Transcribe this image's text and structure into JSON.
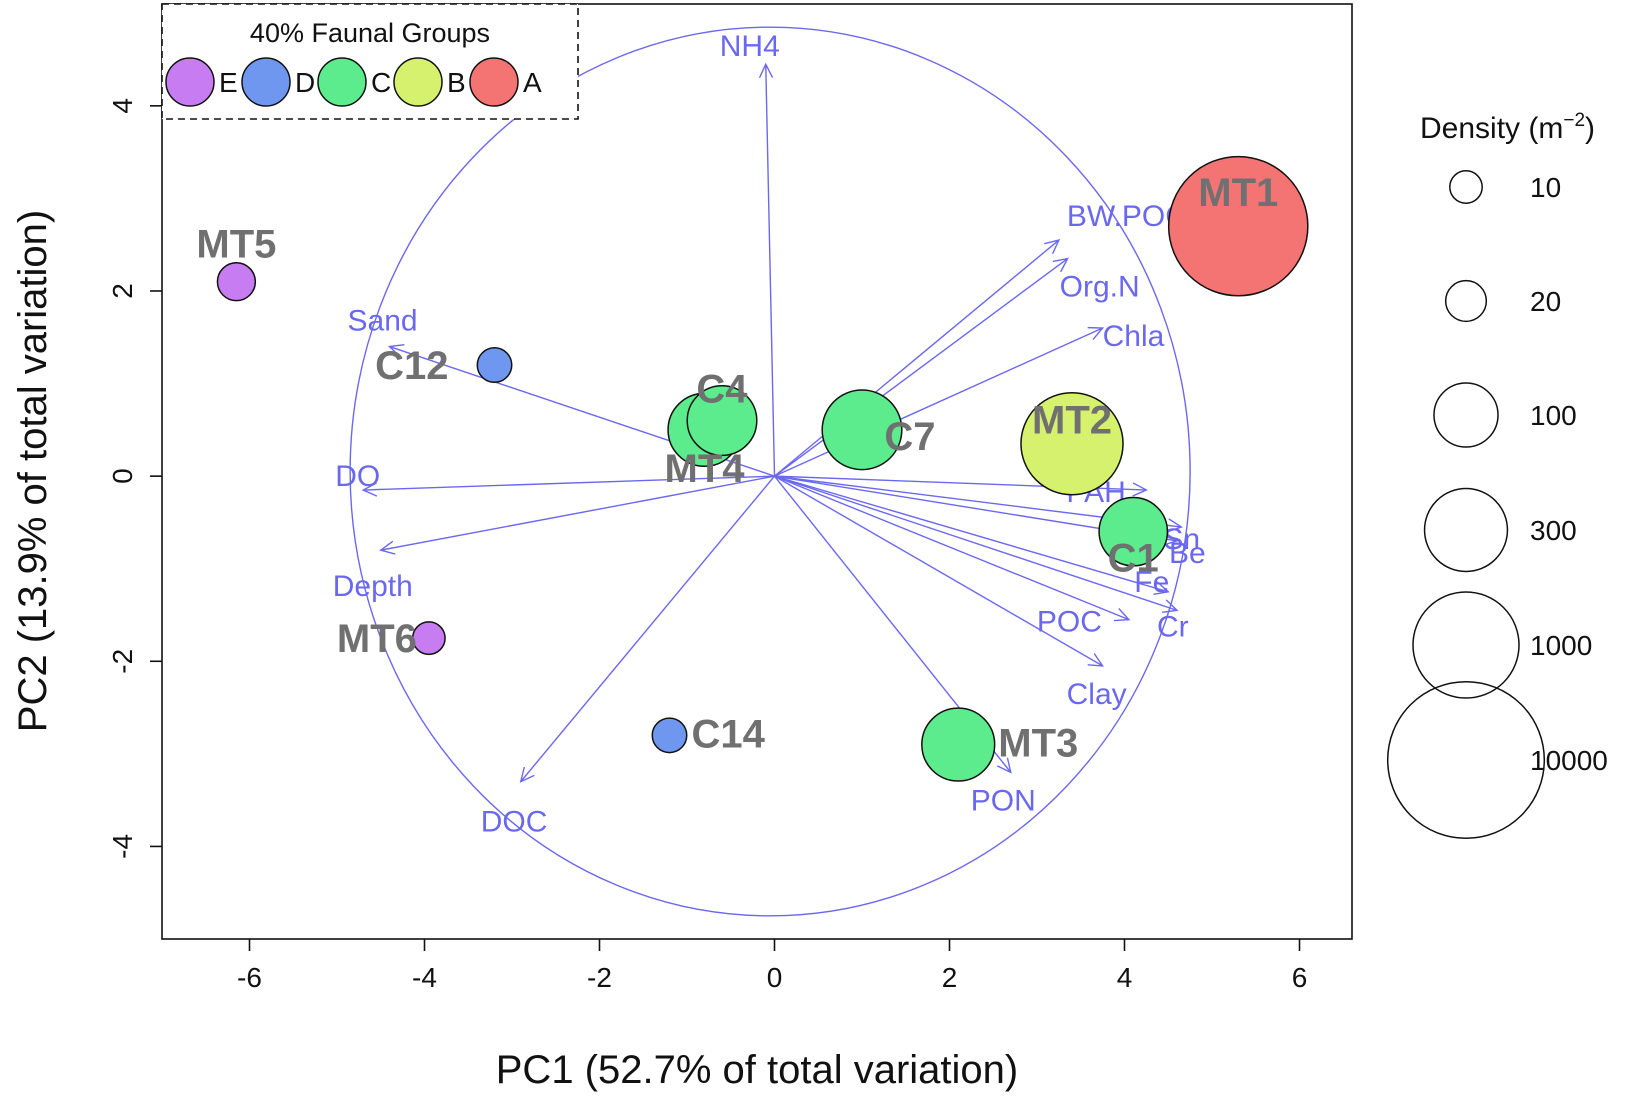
{
  "chart_data": {
    "type": "scatter",
    "title": "",
    "xlabel": "PC1 (52.7% of total variation)",
    "ylabel": "PC2 (13.9% of total variation)",
    "xlim": [
      -7,
      6.6
    ],
    "ylim": [
      -5,
      5.1
    ],
    "xticks": [
      -6,
      -4,
      -2,
      0,
      2,
      4,
      6
    ],
    "yticks": [
      -4,
      -2,
      0,
      2,
      4
    ],
    "grid": false,
    "legend_position": "top-left",
    "groups_title": "40% Faunal Groups",
    "groups": [
      {
        "label": "E",
        "color": "#c77cf2"
      },
      {
        "label": "D",
        "color": "#6f97f0"
      },
      {
        "label": "C",
        "color": "#5cec8d"
      },
      {
        "label": "B",
        "color": "#d6f16e"
      },
      {
        "label": "A",
        "color": "#f47474"
      }
    ],
    "density_title": "Density (m",
    "density_unit_exp": "−2",
    "density_unit_close": ")",
    "density_legend": [
      {
        "label": "10",
        "value": 10
      },
      {
        "label": "20",
        "value": 20
      },
      {
        "label": "100",
        "value": 100
      },
      {
        "label": "300",
        "value": 300
      },
      {
        "label": "1000",
        "value": 1000
      },
      {
        "label": "10000",
        "value": 10000
      }
    ],
    "circle_center": [
      -0.05,
      0.05
    ],
    "circle_radius": 4.8,
    "points": [
      {
        "label": "MT1",
        "x": 5.3,
        "y": 2.7,
        "group": "A",
        "density": 4700
      },
      {
        "label": "MT2",
        "x": 3.4,
        "y": 0.35,
        "group": "B",
        "density": 820
      },
      {
        "label": "C7",
        "x": 1.0,
        "y": 0.5,
        "group": "C",
        "density": 250
      },
      {
        "label": "C4",
        "x": -0.6,
        "y": 0.6,
        "group": "C",
        "density": 140
      },
      {
        "label": "MT4",
        "x": -0.8,
        "y": 0.5,
        "group": "C",
        "density": 170
      },
      {
        "label": "C1",
        "x": 4.1,
        "y": -0.6,
        "group": "C",
        "density": 130
      },
      {
        "label": "MT3",
        "x": 2.1,
        "y": -2.9,
        "group": "C",
        "density": 170
      },
      {
        "label": "C12",
        "x": -3.2,
        "y": 1.2,
        "group": "D",
        "density": 12
      },
      {
        "label": "C14",
        "x": -1.2,
        "y": -2.8,
        "group": "D",
        "density": 12
      },
      {
        "label": "MT5",
        "x": -6.15,
        "y": 2.1,
        "group": "E",
        "density": 16
      },
      {
        "label": "MT6",
        "x": -3.95,
        "y": -1.75,
        "group": "E",
        "density": 10
      }
    ],
    "vectors": [
      {
        "label": "NH4",
        "x": -0.1,
        "y": 4.45
      },
      {
        "label": "BW.POC",
        "x": 3.25,
        "y": 2.55
      },
      {
        "label": "Org.N",
        "x": 3.35,
        "y": 2.35
      },
      {
        "label": "Chla",
        "x": 3.75,
        "y": 1.6
      },
      {
        "label": "Sand",
        "x": -4.4,
        "y": 1.4
      },
      {
        "label": "DO",
        "x": -4.7,
        "y": -0.15
      },
      {
        "label": "Depth",
        "x": -4.5,
        "y": -0.8
      },
      {
        "label": "PAH",
        "x": 4.25,
        "y": -0.15
      },
      {
        "label": "Sn",
        "x": 4.65,
        "y": -0.55
      },
      {
        "label": "Be",
        "x": 4.6,
        "y": -0.7
      },
      {
        "label": "Fe",
        "x": 4.5,
        "y": -1.25
      },
      {
        "label": "Cr",
        "x": 4.6,
        "y": -1.45
      },
      {
        "label": "POC",
        "x": 4.05,
        "y": -1.55
      },
      {
        "label": "Clay",
        "x": 3.75,
        "y": -2.05
      },
      {
        "label": "PON",
        "x": 2.7,
        "y": -3.2
      },
      {
        "label": "DOC",
        "x": -2.9,
        "y": -3.3
      }
    ]
  },
  "colors": {
    "vector": "#6b68f0",
    "point_label": "#707070",
    "axis": "#111111"
  }
}
